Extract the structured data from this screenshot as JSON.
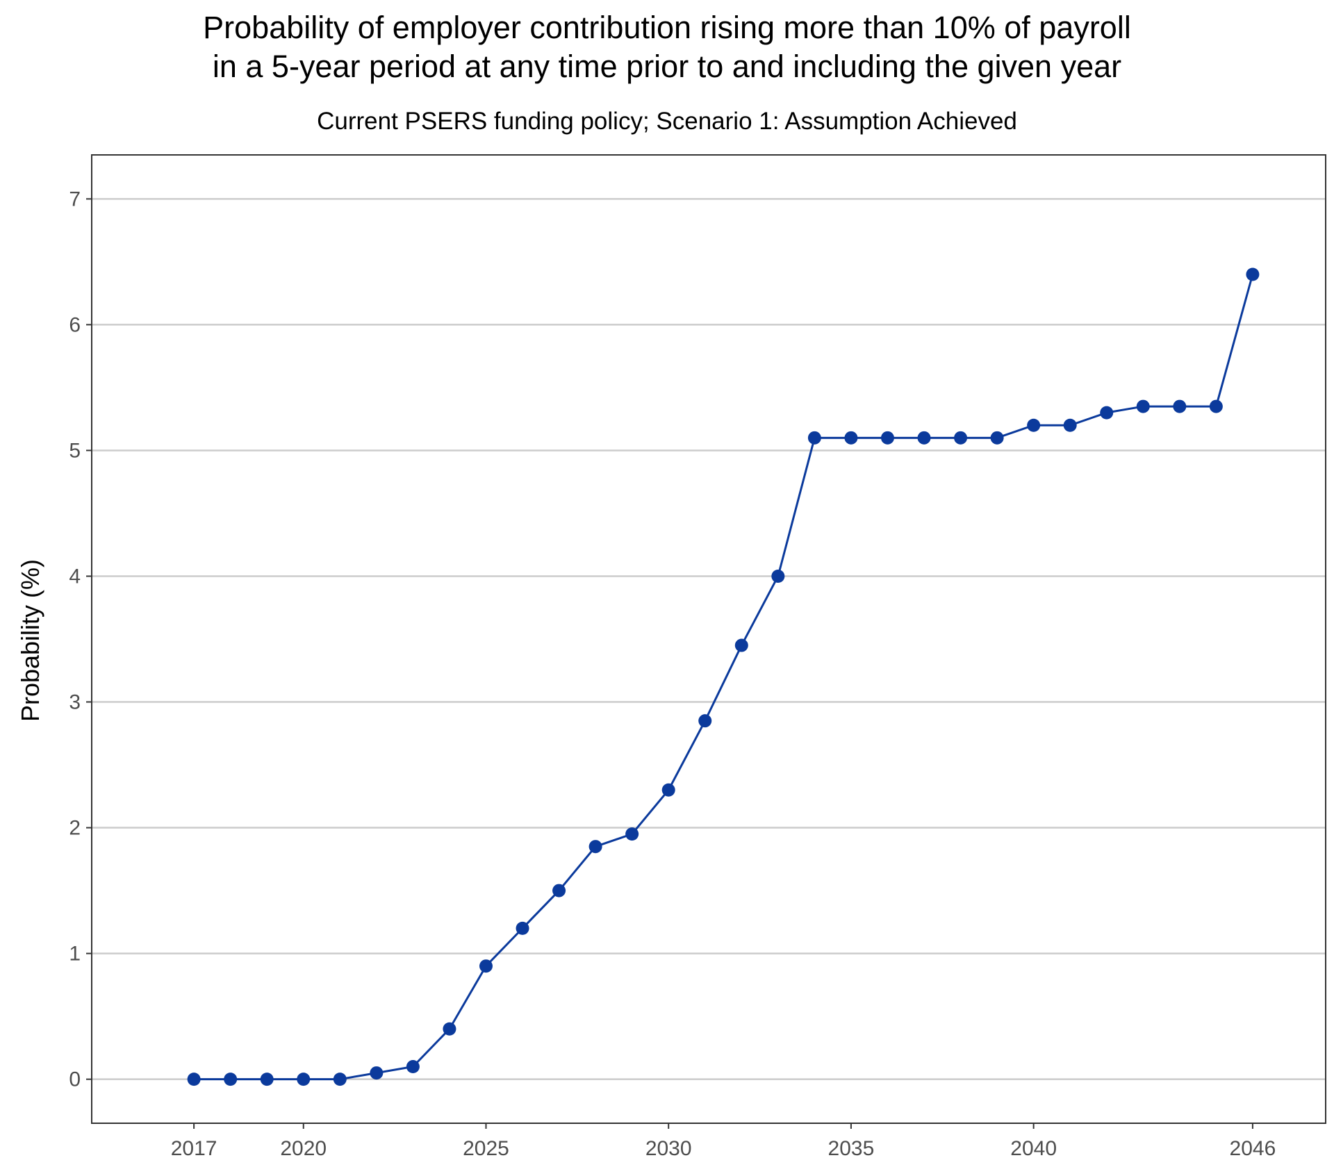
{
  "chart_data": {
    "type": "line",
    "title_lines": [
      "Probability of employer contribution rising more than 10% of payroll",
      "in a 5-year period at any time prior to and including the given year"
    ],
    "subtitle": "Current PSERS funding policy; Scenario 1: Assumption Achieved",
    "xlabel": "",
    "ylabel": "Probability (%)",
    "xlim": [
      2014.2,
      2048.0
    ],
    "ylim": [
      -0.35,
      7.35
    ],
    "x_ticks": [
      2017,
      2020,
      2025,
      2030,
      2035,
      2040,
      2046
    ],
    "y_ticks": [
      0,
      1,
      2,
      3,
      4,
      5,
      6,
      7
    ],
    "grid": "horizontal major",
    "legend": "none",
    "colors": {
      "series": "#0b3a9c",
      "grid": "#cccccc",
      "axis": "#333333"
    },
    "series": [
      {
        "x": [
          2017,
          2018,
          2019,
          2020,
          2021,
          2022,
          2023,
          2024,
          2025,
          2026,
          2027,
          2028,
          2029,
          2030,
          2031,
          2032,
          2033,
          2034,
          2035,
          2036,
          2037,
          2038,
          2039,
          2040,
          2041,
          2042,
          2043,
          2044,
          2045,
          2046
        ],
        "values": [
          0,
          0,
          0,
          0,
          0,
          0.05,
          0.1,
          0.4,
          0.9,
          1.2,
          1.5,
          1.85,
          1.95,
          2.3,
          2.85,
          3.45,
          4.0,
          5.1,
          5.1,
          5.1,
          5.1,
          5.1,
          5.1,
          5.2,
          5.2,
          5.3,
          5.35,
          5.35,
          5.35,
          6.4
        ]
      }
    ]
  }
}
